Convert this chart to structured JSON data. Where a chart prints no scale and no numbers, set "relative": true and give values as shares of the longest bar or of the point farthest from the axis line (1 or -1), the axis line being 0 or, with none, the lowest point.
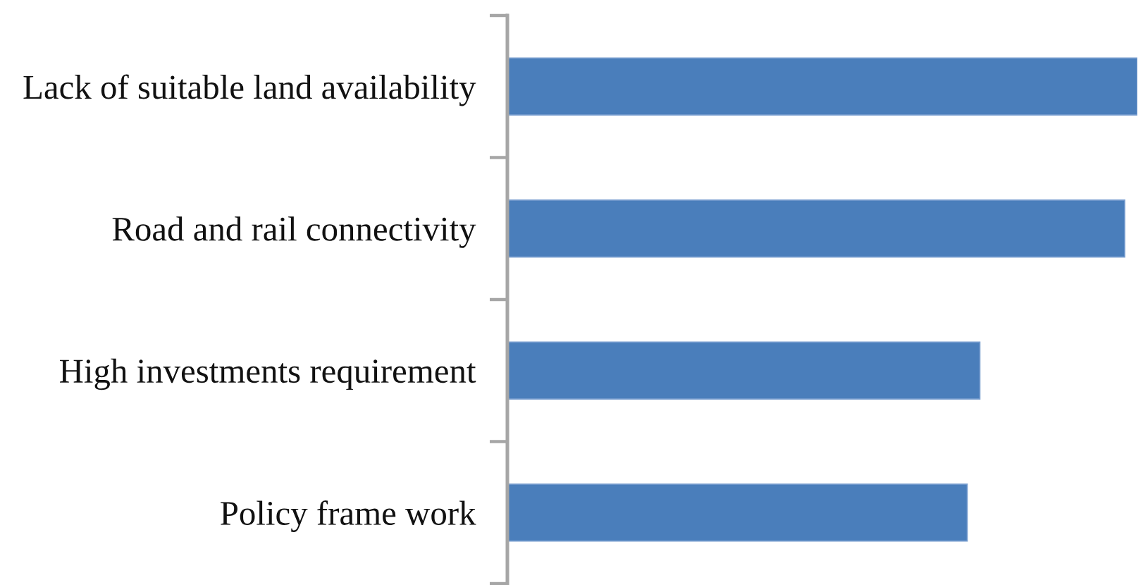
{
  "chart_data": {
    "type": "bar",
    "orientation": "horizontal",
    "relative": true,
    "categories": [
      "Lack of suitable land availability",
      "Road and rail connectivity",
      "High investments requirement",
      "Policy frame work"
    ],
    "values": [
      1,
      0.98,
      0.75,
      0.73
    ],
    "color": "#4a7ebb"
  }
}
